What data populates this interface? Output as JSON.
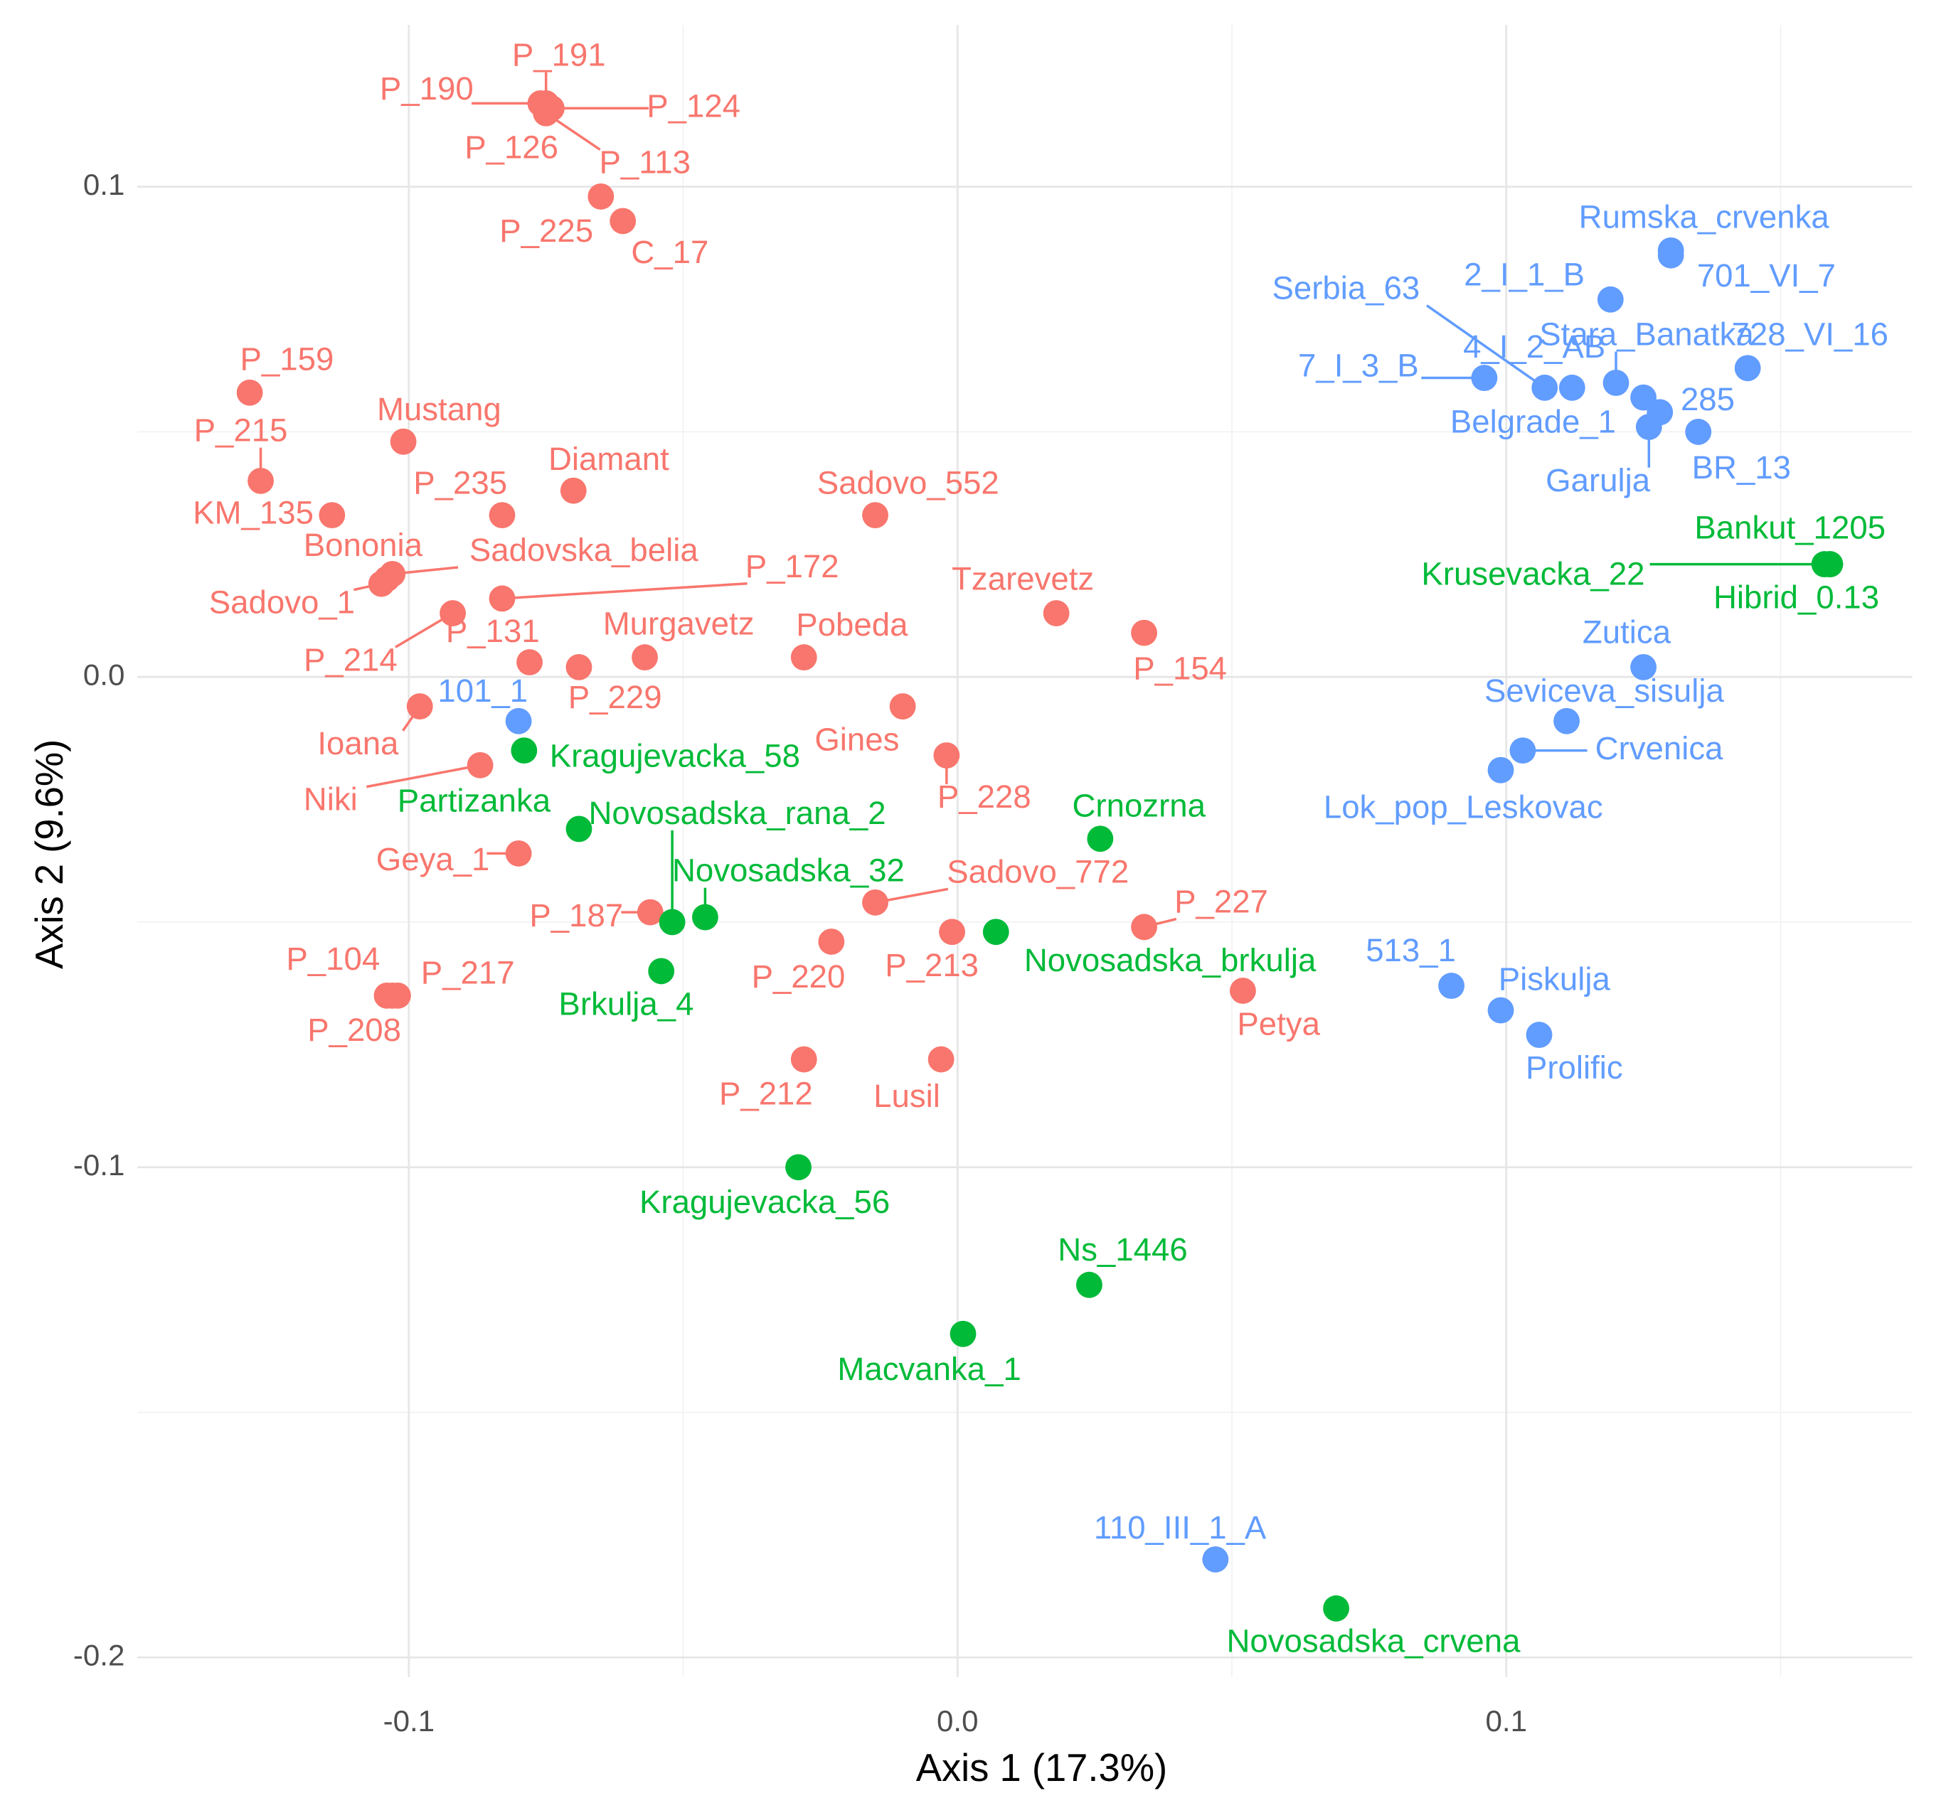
{
  "chart_data": {
    "type": "scatter",
    "x_label": "Axis 1 (17.3%)",
    "y_label": "Axis 2 (9.6%)",
    "xlim": [
      -0.1495,
      0.174
    ],
    "ylim": [
      -0.204,
      0.133
    ],
    "xticks": [
      -0.1,
      {
        "value": 0,
        "label": "0.0"
      },
      0.1
    ],
    "yticks": [
      -0.2,
      -0.1,
      {
        "value": 0,
        "label": "0.0"
      },
      0.1
    ],
    "xminor": [
      -0.15,
      -0.05,
      0.05,
      0.15
    ],
    "yminor": [
      -0.15,
      -0.05,
      0.05
    ],
    "grid": true,
    "series": [
      {
        "color": "#F8766D",
        "labels": [
          "P_191",
          "P_190",
          "P_124",
          "P_126",
          "P_113",
          "P_225",
          "C_17",
          "P_159",
          "P_215",
          "KM_135",
          "Mustang",
          "P_235",
          "Diamant",
          "Sadovo_552",
          "Sadovska_belia",
          "Bononia",
          "Sadovo_1",
          "P_172",
          "P_214",
          "P_131",
          "Murgavetz",
          "P_229",
          "Pobeda",
          "Tzarevetz",
          "P_154",
          "Ioana",
          "Gines",
          "Niki",
          "P_228",
          "Geya_1",
          "P_187",
          "Sadovo_772",
          "P_220",
          "P_213",
          "P_227",
          "P_104",
          "P_217",
          "P_208",
          "Petya",
          "P_212",
          "Lusil"
        ],
        "x": [
          -0.075,
          -0.076,
          -0.074,
          -0.075,
          -0.075,
          -0.065,
          -0.061,
          -0.129,
          -0.127,
          -0.114,
          -0.101,
          -0.083,
          -0.07,
          -0.015,
          -0.103,
          -0.104,
          -0.105,
          -0.083,
          -0.092,
          -0.078,
          -0.057,
          -0.069,
          -0.028,
          0.018,
          0.034,
          -0.098,
          -0.01,
          -0.087,
          -0.002,
          -0.08,
          -0.056,
          -0.015,
          -0.023,
          -0.001,
          0.034,
          -0.104,
          -0.102,
          -0.103,
          0.052,
          -0.028,
          -0.003
        ],
        "y": [
          0.117,
          0.117,
          0.116,
          0.116,
          0.115,
          0.098,
          0.093,
          0.058,
          0.04,
          0.033,
          0.048,
          0.033,
          0.038,
          0.033,
          0.021,
          0.02,
          0.019,
          0.016,
          0.013,
          0.003,
          0.004,
          0.002,
          0.004,
          0.013,
          0.009,
          -0.006,
          -0.006,
          -0.018,
          -0.016,
          -0.036,
          -0.048,
          -0.046,
          -0.054,
          -0.052,
          -0.051,
          -0.065,
          -0.065,
          -0.065,
          -0.064,
          -0.078,
          -0.078
        ]
      },
      {
        "color": "#619CFF",
        "labels": [
          "Rumska_crvenka",
          "701_VI_7",
          "2_I_1_B",
          "Serbia_63",
          "4_I_2_AB",
          "Stara_Banatka",
          "728_VI_16",
          "7_I_3_B",
          "285",
          "Belgrade_1",
          "Garulja",
          "BR_13",
          "Zutica",
          "Seviceva_sisulja",
          "Crvenica",
          "Lok_pop_Leskovac",
          "101_1",
          "513_1",
          "Piskulja",
          "Prolific",
          "110_III_1_A"
        ],
        "x": [
          0.13,
          0.13,
          0.119,
          0.107,
          0.112,
          0.12,
          0.144,
          0.096,
          0.128,
          0.125,
          0.126,
          0.135,
          0.125,
          0.111,
          0.103,
          0.099,
          -0.08,
          0.09,
          0.099,
          0.106,
          0.047
        ],
        "y": [
          0.087,
          0.086,
          0.077,
          0.059,
          0.059,
          0.06,
          0.063,
          0.061,
          0.054,
          0.057,
          0.051,
          0.05,
          0.002,
          -0.009,
          -0.015,
          -0.019,
          -0.009,
          -0.063,
          -0.068,
          -0.073,
          -0.18
        ]
      },
      {
        "color": "#00BA38",
        "labels": [
          "Bankut_1205",
          "Krusevacka_22",
          "Hibrid_0.13",
          "Kragujevacka_58",
          "Partizanka",
          "Novosadska_rana_2",
          "Novosadska_32",
          "Crnozrna",
          "Novosadska_brkulja",
          "Brkulja_4",
          "Kragujevacka_56",
          "Ns_1446",
          "Macvanka_1",
          "Novosadska_crvena"
        ],
        "x": [
          0.159,
          0.158,
          0.159,
          -0.079,
          -0.069,
          -0.052,
          -0.046,
          0.026,
          0.007,
          -0.054,
          -0.029,
          0.024,
          0.001,
          0.069
        ],
        "y": [
          0.023,
          0.023,
          0.023,
          -0.015,
          -0.031,
          -0.05,
          -0.049,
          -0.033,
          -0.052,
          -0.06,
          -0.1,
          -0.124,
          -0.134,
          -0.19
        ]
      }
    ]
  }
}
